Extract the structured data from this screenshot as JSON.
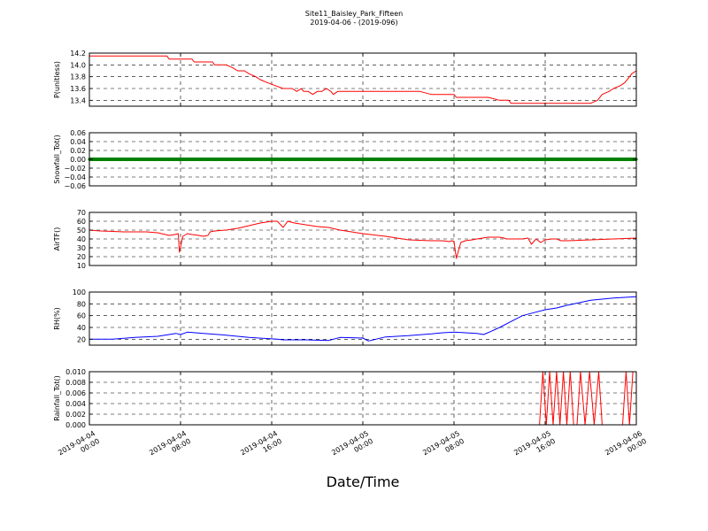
{
  "figure": {
    "title_line1": "Site11_Baisley_Park_Fifteen",
    "title_line2": "2019-04-06 - (2019-096)",
    "xlabel": "Date/Time"
  },
  "chart_data": [
    {
      "type": "line",
      "ylabel": "P(unitless)",
      "ylim": [
        13.3,
        14.2
      ],
      "yticks": [
        "14.2",
        "14.0",
        "13.8",
        "13.6",
        "13.4"
      ],
      "ytick_values": [
        14.2,
        14.0,
        13.8,
        13.6,
        13.4
      ],
      "grid": true,
      "series": [
        {
          "color": "#ff0000",
          "x": [
            0,
            4,
            6.8,
            7,
            9,
            9.2,
            10.8,
            11,
            12,
            12.6,
            13,
            13.6,
            14,
            14.6,
            15,
            15.6,
            16.3,
            17,
            17.4,
            17.8,
            18.2,
            18.6,
            18.8,
            19.2,
            19.6,
            20,
            20.4,
            20.8,
            21.2,
            21.4,
            21.8,
            22,
            26,
            29,
            30,
            32,
            32.2,
            35,
            36,
            36.8,
            37,
            42,
            44,
            44.6,
            45,
            45.6,
            46,
            46.6,
            47,
            47.4,
            47.6,
            48
          ],
          "y": [
            14.15,
            14.15,
            14.15,
            14.1,
            14.1,
            14.05,
            14.05,
            14.0,
            14.0,
            13.95,
            13.9,
            13.9,
            13.85,
            13.8,
            13.75,
            13.7,
            13.65,
            13.6,
            13.6,
            13.6,
            13.55,
            13.6,
            13.55,
            13.55,
            13.5,
            13.55,
            13.55,
            13.6,
            13.55,
            13.5,
            13.55,
            13.55,
            13.55,
            13.55,
            13.5,
            13.5,
            13.45,
            13.45,
            13.4,
            13.4,
            13.35,
            13.35,
            13.35,
            13.4,
            13.5,
            13.55,
            13.6,
            13.65,
            13.7,
            13.8,
            13.85,
            13.9
          ]
        }
      ]
    },
    {
      "type": "scatter",
      "ylabel": "Snowfall_Tot()",
      "ylim": [
        -0.06,
        0.06
      ],
      "yticks": [
        "0.06",
        "0.04",
        "0.02",
        "0.00",
        "−0.02",
        "−0.04",
        "−0.06"
      ],
      "ytick_values": [
        0.06,
        0.04,
        0.02,
        0.0,
        -0.02,
        -0.04,
        -0.06
      ],
      "grid": true,
      "series": [
        {
          "color": "#008000",
          "constant": 0.0
        }
      ]
    },
    {
      "type": "line",
      "ylabel": "AirTF()",
      "ylim": [
        10,
        70
      ],
      "yticks": [
        "70",
        "60",
        "50",
        "40",
        "30",
        "20",
        "10"
      ],
      "ytick_values": [
        70,
        60,
        50,
        40,
        30,
        20,
        10
      ],
      "grid": true,
      "series": [
        {
          "color": "#ff0000",
          "x": [
            0,
            1,
            3,
            5,
            6,
            7,
            7.5,
            7.8,
            7.9,
            8.2,
            8.6,
            9,
            9.6,
            10,
            10.4,
            10.6,
            11,
            12,
            13,
            14,
            15,
            16,
            16.5,
            17,
            17.4,
            18,
            19,
            20,
            21,
            22,
            24,
            26,
            28,
            30,
            31,
            31.6,
            31.8,
            32,
            32.2,
            32.6,
            33,
            33.6,
            34,
            35,
            36,
            36.4,
            36.6,
            37,
            38,
            38.5,
            38.8,
            39.2,
            39.6,
            40,
            40.6,
            41,
            41.4,
            42,
            44,
            46,
            48
          ],
          "y": [
            50,
            49,
            48,
            48,
            47,
            44,
            45,
            46,
            25,
            43,
            46,
            45,
            44,
            43,
            44,
            48,
            49,
            50,
            52,
            55,
            58,
            60,
            60,
            53,
            60,
            58,
            56,
            54,
            53,
            50,
            46,
            43,
            39,
            38,
            38,
            37,
            38,
            37,
            18,
            36,
            38,
            39,
            40,
            42,
            42,
            41,
            40,
            40,
            40,
            41,
            34,
            40,
            36,
            39,
            40,
            40,
            38,
            38,
            39,
            40,
            41
          ]
        }
      ]
    },
    {
      "type": "line",
      "ylabel": "RH(%)",
      "ylim": [
        10,
        100
      ],
      "yticks": [
        "100",
        "80",
        "60",
        "40",
        "20"
      ],
      "ytick_values": [
        100,
        80,
        60,
        40,
        20
      ],
      "grid": true,
      "series": [
        {
          "color": "#0000ff",
          "x": [
            0,
            2,
            4,
            6,
            7,
            7.6,
            8,
            8.6,
            10,
            12,
            14,
            16.5,
            17,
            19,
            21,
            22,
            24,
            24.5,
            26,
            28,
            30,
            31,
            32,
            34,
            34.6,
            35.2,
            36,
            37,
            38,
            39,
            40,
            41,
            42,
            43,
            44,
            45,
            46,
            47,
            48
          ],
          "y": [
            20,
            20,
            23,
            25,
            28,
            30,
            28,
            32,
            30,
            27,
            23,
            20,
            19,
            19,
            18,
            23,
            22,
            17,
            24,
            26,
            29,
            31,
            32,
            30,
            28,
            33,
            40,
            50,
            60,
            65,
            70,
            73,
            78,
            82,
            86,
            88,
            90,
            91,
            92
          ]
        }
      ]
    },
    {
      "type": "line",
      "ylabel": "Rainfall_Tot()",
      "ylim": [
        0.0,
        0.01
      ],
      "yticks": [
        "0.010",
        "0.008",
        "0.006",
        "0.004",
        "0.002",
        "0.000"
      ],
      "ytick_values": [
        0.01,
        0.008,
        0.006,
        0.004,
        0.002,
        0.0
      ],
      "grid": true,
      "series": [
        {
          "color": "#ff0000",
          "x": [
            0,
            39.5,
            39.8,
            40.1,
            40.4,
            40.7,
            41.0,
            41.3,
            41.6,
            41.9,
            42.2,
            42.5,
            42.8,
            43.1,
            43.5,
            43.9,
            44.3,
            44.7,
            45.0,
            45.3,
            46.8,
            47.1,
            47.4,
            47.7,
            48
          ],
          "y": [
            0,
            0,
            0.01,
            0,
            0.01,
            0,
            0.01,
            0,
            0.01,
            0,
            0.01,
            0,
            0,
            0.01,
            0,
            0.01,
            0,
            0.01,
            0,
            0,
            0,
            0.01,
            0,
            0.01,
            0.01
          ]
        }
      ]
    }
  ],
  "xaxis": {
    "range": [
      0,
      48
    ],
    "tick_values": [
      0,
      8,
      16,
      24,
      32,
      40,
      48
    ],
    "tick_labels": [
      [
        "2019-04-04",
        "00:00"
      ],
      [
        "2019-04-04",
        "08:00"
      ],
      [
        "2019-04-04",
        "16:00"
      ],
      [
        "2019-04-05",
        "00:00"
      ],
      [
        "2019-04-05",
        "08:00"
      ],
      [
        "2019-04-05",
        "16:00"
      ],
      [
        "2019-04-06",
        "00:00"
      ]
    ]
  }
}
